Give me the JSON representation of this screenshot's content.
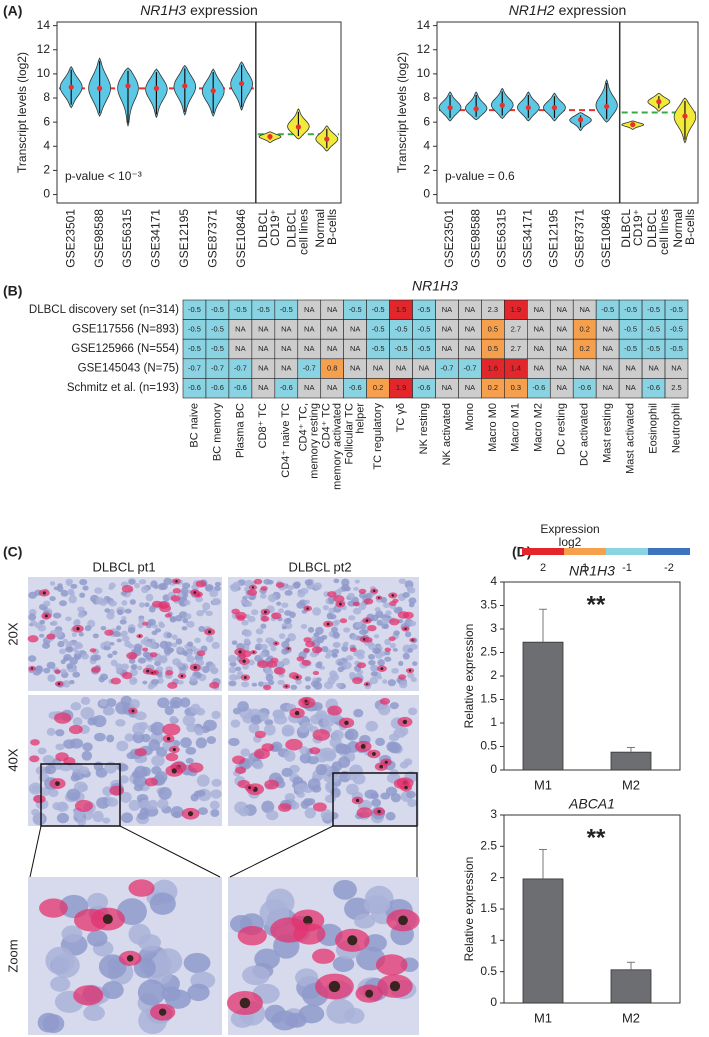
{
  "panel_labels": [
    "(A)",
    "(B)",
    "(C)",
    "(D)"
  ],
  "chart_data": [
    {
      "type": "violin",
      "title_gene": "NR1H3",
      "title_rest": "expression",
      "ylabel": "Transcript levels (log2)",
      "annotation": "p-value < 10⁻³",
      "ylim": [
        -0.7,
        14.3
      ],
      "yticks": [
        0,
        2,
        4,
        6,
        8,
        10,
        12,
        14
      ],
      "groups": [
        {
          "color": "#5bc8e6",
          "reference": 8.8,
          "reference_color": "#e8312f",
          "categories": [
            "GSE23501",
            "GSE98588",
            "GSE56315",
            "GSE34171",
            "GSE12195",
            "GSE87371",
            "GSE10846"
          ],
          "values": [
            8.9,
            8.8,
            9.0,
            8.8,
            9.0,
            8.6,
            9.2
          ],
          "lows": [
            7.2,
            6.5,
            5.7,
            6.4,
            6.6,
            6.5,
            7.0
          ],
          "highs": [
            10.6,
            11.3,
            10.5,
            10.4,
            10.7,
            10.4,
            11.0
          ]
        },
        {
          "color": "#f2ea3a",
          "reference": 5.0,
          "reference_color": "#33aa44",
          "categories": [
            [
              "DLBCL",
              "CD19⁺"
            ],
            [
              "DLBCL",
              "cell lines"
            ],
            [
              "Normal",
              "B-cells"
            ]
          ],
          "values": [
            4.8,
            5.6,
            4.6
          ],
          "lows": [
            4.3,
            4.6,
            3.6
          ],
          "highs": [
            5.2,
            7.1,
            5.7
          ]
        }
      ]
    },
    {
      "type": "violin",
      "title_gene": "NR1H2",
      "title_rest": "expression",
      "ylabel": "Transcript levels (log2)",
      "annotation": "p-value = 0.6",
      "ylim": [
        -0.7,
        14.3
      ],
      "yticks": [
        0,
        2,
        4,
        6,
        8,
        10,
        12,
        14
      ],
      "groups": [
        {
          "color": "#5bc8e6",
          "reference": 7.0,
          "reference_color": "#e8312f",
          "categories": [
            "GSE23501",
            "GSE98588",
            "GSE56315",
            "GSE34171",
            "GSE12195",
            "GSE87371",
            "GSE10846"
          ],
          "values": [
            7.2,
            7.1,
            7.4,
            7.2,
            7.2,
            6.2,
            7.3
          ],
          "lows": [
            6.1,
            6.2,
            6.3,
            6.1,
            6.1,
            5.3,
            6.0
          ],
          "highs": [
            8.5,
            8.5,
            8.8,
            8.5,
            8.4,
            6.8,
            9.5
          ]
        },
        {
          "color": "#f2ea3a",
          "reference": 6.8,
          "reference_color": "#33aa44",
          "categories": [
            [
              "DLBCL",
              "CD19⁺"
            ],
            [
              "DLBCL",
              "cell lines"
            ],
            [
              "Normal",
              "B-cells"
            ]
          ],
          "values": [
            5.8,
            7.7,
            6.5
          ],
          "lows": [
            5.4,
            6.9,
            4.3
          ],
          "highs": [
            6.1,
            8.4,
            8.0
          ]
        }
      ]
    },
    {
      "type": "heatmap",
      "title": "NR1H3",
      "na_label": "NA",
      "na_color": "#cdcdcd",
      "rows": [
        "DLBCL discovery set (n=314)",
        "GSE117556 (N=893)",
        "GSE125966 (N=554)",
        "GSE145043 (N=75)",
        "Schmitz et al. (n=193)"
      ],
      "columns": [
        "BC naive",
        "BC memory",
        "Plasma BC",
        "CD8⁺ TC",
        "CD4⁺ naive TC",
        [
          "CD4⁺ TC,",
          "memory resting"
        ],
        [
          "CD4⁺ TC",
          "memory activated"
        ],
        [
          "Follicular TC",
          "helper"
        ],
        "TC regulatory",
        "TC γδ",
        "NK resting",
        "NK activated",
        "Mono",
        "Macro M0",
        "Macro M1",
        "Macro M2",
        "DC resting",
        "DC activated",
        "Mast resting",
        "Mast activated",
        "Eosinophil",
        "Neutrophil"
      ],
      "values": [
        [
          -0.5,
          -0.5,
          -0.5,
          -0.5,
          -0.5,
          null,
          null,
          -0.5,
          -0.5,
          1.5,
          -0.5,
          null,
          null,
          2.3,
          1.9,
          null,
          null,
          null,
          -0.5,
          -0.5,
          -0.5,
          -0.5
        ],
        [
          -0.5,
          -0.5,
          null,
          null,
          null,
          null,
          null,
          null,
          -0.5,
          -0.5,
          -0.5,
          null,
          null,
          0.5,
          2.7,
          null,
          null,
          0.2,
          null,
          -0.5,
          -0.5,
          -0.5
        ],
        [
          -0.5,
          -0.5,
          null,
          null,
          null,
          null,
          null,
          null,
          -0.5,
          -0.5,
          -0.5,
          null,
          null,
          0.5,
          2.7,
          null,
          null,
          0.2,
          null,
          -0.5,
          -0.5,
          -0.5
        ],
        [
          -0.7,
          -0.7,
          -0.7,
          null,
          null,
          -0.7,
          0.8,
          null,
          null,
          null,
          null,
          -0.7,
          -0.7,
          1.6,
          1.4,
          null,
          null,
          null,
          null,
          null,
          null,
          null
        ],
        [
          -0.6,
          -0.6,
          -0.6,
          null,
          -0.6,
          null,
          null,
          -0.6,
          0.2,
          1.9,
          -0.6,
          null,
          null,
          0.2,
          0.3,
          -0.6,
          null,
          -0.6,
          null,
          null,
          -0.6,
          2.5
        ]
      ],
      "legend_title": [
        "Expression",
        "log2"
      ],
      "color_scale": [
        {
          "value": 2,
          "color": "#e3262b"
        },
        {
          "value": 1,
          "color": "#f6a04d"
        },
        {
          "value": -1,
          "color": "#8ad3e3"
        },
        {
          "value": -2,
          "color": "#3d74bd"
        }
      ]
    },
    {
      "type": "bar",
      "title": "NR1H3",
      "ylabel": "Relative expression",
      "annotation": "**",
      "color": "#6d6e71",
      "categories": [
        "M1",
        "M2"
      ],
      "values": [
        2.72,
        0.38
      ],
      "errors": [
        0.7,
        0.1
      ],
      "ylim": [
        0,
        4
      ],
      "yticks": [
        0,
        0.5,
        1,
        1.5,
        2,
        2.5,
        3,
        3.5,
        4
      ]
    },
    {
      "type": "bar",
      "title": "ABCA1",
      "ylabel": "Relative expression",
      "annotation": "**",
      "color": "#6d6e71",
      "categories": [
        "M1",
        "M2"
      ],
      "values": [
        1.98,
        0.53
      ],
      "errors": [
        0.47,
        0.12
      ],
      "ylim": [
        0,
        3
      ],
      "yticks": [
        0,
        0.5,
        1,
        1.5,
        2,
        2.5,
        3
      ]
    }
  ],
  "micrographs": {
    "columns": [
      "DLBCL pt1",
      "DLBCL pt2"
    ],
    "rows": [
      "20X",
      "40X",
      "Zoom"
    ]
  }
}
